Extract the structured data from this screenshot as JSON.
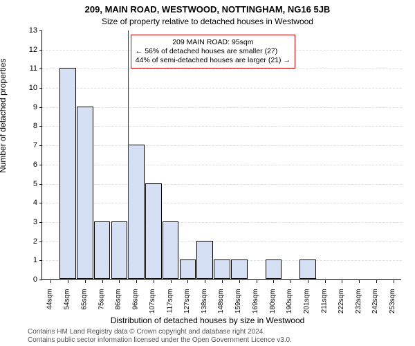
{
  "header": {
    "title": "209, MAIN ROAD, WESTWOOD, NOTTINGHAM, NG16 5JB",
    "subtitle": "Size of property relative to detached houses in Westwood"
  },
  "axes": {
    "ylabel": "Number of detached properties",
    "xlabel": "Distribution of detached houses by size in Westwood"
  },
  "chart": {
    "type": "histogram",
    "ylim": [
      0,
      13
    ],
    "ytick_step": 1,
    "x_categories": [
      "44sqm",
      "54sqm",
      "65sqm",
      "75sqm",
      "86sqm",
      "96sqm",
      "107sqm",
      "117sqm",
      "127sqm",
      "138sqm",
      "148sqm",
      "159sqm",
      "169sqm",
      "180sqm",
      "190sqm",
      "201sqm",
      "211sqm",
      "222sqm",
      "232sqm",
      "242sqm",
      "253sqm"
    ],
    "values": [
      0,
      11,
      9,
      3,
      3,
      7,
      5,
      3,
      1,
      2,
      1,
      1,
      0,
      1,
      0,
      1,
      0,
      0,
      0,
      0,
      0
    ],
    "bar_color": "#d6e0f5",
    "bar_border_color": "#000000",
    "bar_width_ratio": 0.95,
    "background_color": "#ffffff",
    "grid_color": "#dddddd",
    "axis_color": "#000000"
  },
  "reference": {
    "value_label": "95sqm",
    "category_index_after": 4,
    "line_color": "#cc0000",
    "callout": {
      "line1": "209 MAIN ROAD: 95sqm",
      "line2": "← 56% of detached houses are smaller (27)",
      "line3": "44% of semi-detached houses are larger (21) →",
      "border_color": "#cc0000"
    }
  },
  "footer": {
    "line1": "Contains HM Land Registry data © Crown copyright and database right 2024.",
    "line2": "Contains public sector information licensed under the Open Government Licence v3.0."
  },
  "style": {
    "title_fontsize": 13,
    "subtitle_fontsize": 12,
    "label_fontsize": 12,
    "tick_fontsize": 11,
    "xtick_fontsize": 10,
    "footnote_fontsize": 10,
    "footnote_color": "#555555"
  }
}
